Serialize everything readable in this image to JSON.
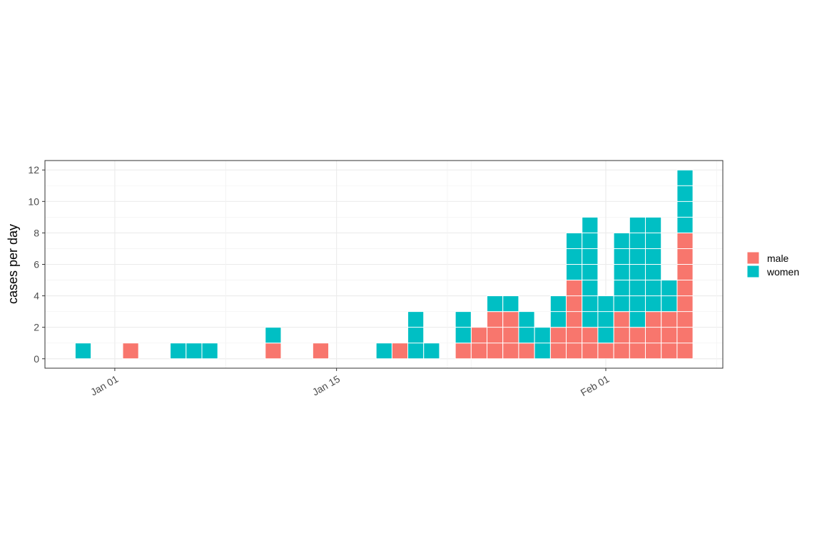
{
  "chart_data": {
    "type": "bar",
    "stacked": true,
    "ylabel": "cases per day",
    "x": [
      "Dec 30",
      "Jan 02",
      "Jan 05",
      "Jan 06",
      "Jan 07",
      "Jan 11",
      "Jan 14",
      "Jan 18",
      "Jan 19",
      "Jan 20",
      "Jan 21",
      "Jan 23",
      "Jan 24",
      "Jan 25",
      "Jan 26",
      "Jan 27",
      "Jan 28",
      "Jan 29",
      "Jan 30",
      "Jan 31",
      "Feb 01",
      "Feb 02",
      "Feb 03",
      "Feb 04",
      "Feb 05",
      "Feb 06"
    ],
    "series": [
      {
        "name": "male",
        "color": "#F8766D",
        "values": [
          0,
          1,
          0,
          0,
          0,
          1,
          1,
          0,
          1,
          0,
          0,
          1,
          2,
          3,
          3,
          1,
          0,
          2,
          5,
          2,
          1,
          3,
          2,
          3,
          3,
          8
        ]
      },
      {
        "name": "women",
        "color": "#00BFC4",
        "values": [
          1,
          0,
          1,
          1,
          1,
          1,
          0,
          1,
          0,
          3,
          1,
          2,
          0,
          1,
          1,
          2,
          2,
          2,
          3,
          7,
          3,
          5,
          7,
          6,
          2,
          4
        ]
      }
    ],
    "xlim": [
      "Dec 30",
      "Feb 06"
    ],
    "xticks": [
      "Jan 01",
      "Jan 15",
      "Feb 01"
    ],
    "ylim": [
      -0.6,
      12.6
    ],
    "yticks": [
      0,
      2,
      4,
      6,
      8,
      10,
      12
    ],
    "grid": true,
    "legend": "right"
  }
}
